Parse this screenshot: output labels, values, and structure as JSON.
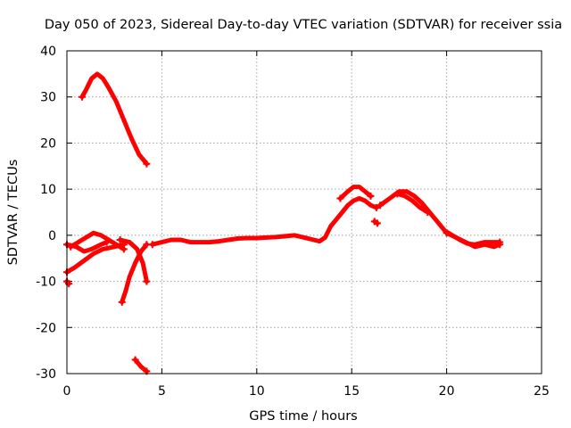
{
  "chart_data": {
    "type": "scatter",
    "title": "Day 050 of 2023, Sidereal Day-to-day VTEC variation (SDTVAR) for receiver ssia",
    "xlabel": "GPS time / hours",
    "ylabel": "SDTVAR / TECUs",
    "xlim": [
      0,
      25
    ],
    "ylim": [
      -30,
      40
    ],
    "xticks": [
      0,
      5,
      10,
      15,
      20,
      25
    ],
    "yticks": [
      -30,
      -20,
      -10,
      0,
      10,
      20,
      30,
      40
    ],
    "grid": true,
    "color": "#ff0000",
    "marker": "+",
    "series": [
      {
        "name": "arc-high",
        "points": [
          [
            0.8,
            30
          ],
          [
            1.0,
            31.5
          ],
          [
            1.3,
            34
          ],
          [
            1.6,
            35
          ],
          [
            1.9,
            34
          ],
          [
            2.2,
            32
          ],
          [
            2.6,
            29
          ],
          [
            3.0,
            25
          ],
          [
            3.4,
            21
          ],
          [
            3.8,
            17.5
          ],
          [
            4.2,
            15.5
          ]
        ]
      },
      {
        "name": "arc-low",
        "points": [
          [
            3.6,
            -27
          ],
          [
            3.9,
            -28.5
          ],
          [
            4.2,
            -29.5
          ]
        ]
      },
      {
        "name": "arc-start",
        "points": [
          [
            0.0,
            -10
          ],
          [
            0.05,
            -10.5
          ],
          [
            0.1,
            -10.5
          ]
        ]
      },
      {
        "name": "arc-rising",
        "points": [
          [
            0.0,
            -8
          ],
          [
            0.4,
            -7
          ],
          [
            0.9,
            -5.5
          ],
          [
            1.4,
            -4
          ],
          [
            1.9,
            -3
          ],
          [
            2.5,
            -2.5
          ],
          [
            3.0,
            -2
          ]
        ]
      },
      {
        "name": "arc-hump",
        "points": [
          [
            0.2,
            -2.5
          ],
          [
            0.8,
            -1
          ],
          [
            1.4,
            0.5
          ],
          [
            1.8,
            0
          ],
          [
            2.2,
            -1
          ],
          [
            2.6,
            -2
          ],
          [
            3.0,
            -3
          ]
        ]
      },
      {
        "name": "arc-fall",
        "points": [
          [
            0.0,
            -2
          ],
          [
            0.5,
            -2.5
          ],
          [
            0.9,
            -3.5
          ],
          [
            1.3,
            -3
          ],
          [
            1.8,
            -2
          ],
          [
            2.1,
            -1.5
          ]
        ]
      },
      {
        "name": "arc-x1",
        "points": [
          [
            2.8,
            -1
          ],
          [
            3.3,
            -1.5
          ],
          [
            3.7,
            -3
          ],
          [
            4.0,
            -6
          ],
          [
            4.2,
            -10
          ]
        ]
      },
      {
        "name": "arc-x2",
        "points": [
          [
            2.9,
            -14.5
          ],
          [
            3.1,
            -12
          ],
          [
            3.3,
            -9
          ],
          [
            3.6,
            -6
          ],
          [
            3.9,
            -3.5
          ],
          [
            4.2,
            -2
          ]
        ]
      },
      {
        "name": "arc-main",
        "points": [
          [
            4.5,
            -2
          ],
          [
            5.0,
            -1.5
          ],
          [
            5.5,
            -1
          ],
          [
            6.0,
            -1
          ],
          [
            6.5,
            -1.5
          ],
          [
            7.0,
            -1.5
          ],
          [
            7.5,
            -1.5
          ],
          [
            8.0,
            -1.3
          ],
          [
            8.5,
            -1
          ],
          [
            9.0,
            -0.7
          ],
          [
            9.5,
            -0.6
          ],
          [
            10.0,
            -0.6
          ],
          [
            10.5,
            -0.5
          ],
          [
            11.0,
            -0.4
          ],
          [
            11.5,
            -0.2
          ],
          [
            12.0,
            0
          ],
          [
            12.5,
            -0.5
          ],
          [
            13.0,
            -1
          ],
          [
            13.3,
            -1.3
          ],
          [
            13.6,
            -0.5
          ],
          [
            13.9,
            2
          ],
          [
            14.2,
            3.5
          ],
          [
            14.5,
            5
          ],
          [
            14.8,
            6.5
          ],
          [
            15.1,
            7.5
          ],
          [
            15.4,
            8
          ],
          [
            15.7,
            7.5
          ],
          [
            16.0,
            6.5
          ],
          [
            16.3,
            6
          ]
        ]
      },
      {
        "name": "arc-peak",
        "points": [
          [
            14.4,
            8
          ],
          [
            14.8,
            9.5
          ],
          [
            15.1,
            10.5
          ],
          [
            15.4,
            10.5
          ],
          [
            15.7,
            9.5
          ],
          [
            16.0,
            8.5
          ]
        ]
      },
      {
        "name": "arc-dot",
        "points": [
          [
            16.2,
            3
          ],
          [
            16.35,
            2.6
          ]
        ]
      },
      {
        "name": "arc-late",
        "points": [
          [
            16.5,
            6.5
          ],
          [
            17.0,
            8
          ],
          [
            17.5,
            9.5
          ],
          [
            17.9,
            9.5
          ],
          [
            18.3,
            8.5
          ],
          [
            18.7,
            7
          ],
          [
            19.1,
            5
          ],
          [
            19.5,
            3
          ],
          [
            19.9,
            1
          ],
          [
            20.3,
            0
          ],
          [
            20.7,
            -1
          ],
          [
            21.1,
            -1.8
          ],
          [
            21.5,
            -2
          ],
          [
            22.0,
            -1.5
          ],
          [
            22.5,
            -1.5
          ],
          [
            22.8,
            -1.5
          ]
        ]
      },
      {
        "name": "arc-late2",
        "points": [
          [
            17.4,
            9
          ],
          [
            17.8,
            8.5
          ],
          [
            18.2,
            7.5
          ],
          [
            18.6,
            6
          ],
          [
            19.0,
            5
          ]
        ]
      },
      {
        "name": "arc-tail",
        "points": [
          [
            20.0,
            0.5
          ],
          [
            20.5,
            -0.5
          ],
          [
            21.0,
            -1.5
          ],
          [
            21.5,
            -2.5
          ],
          [
            22.0,
            -2
          ],
          [
            22.5,
            -2.5
          ],
          [
            22.8,
            -2
          ]
        ]
      }
    ]
  }
}
